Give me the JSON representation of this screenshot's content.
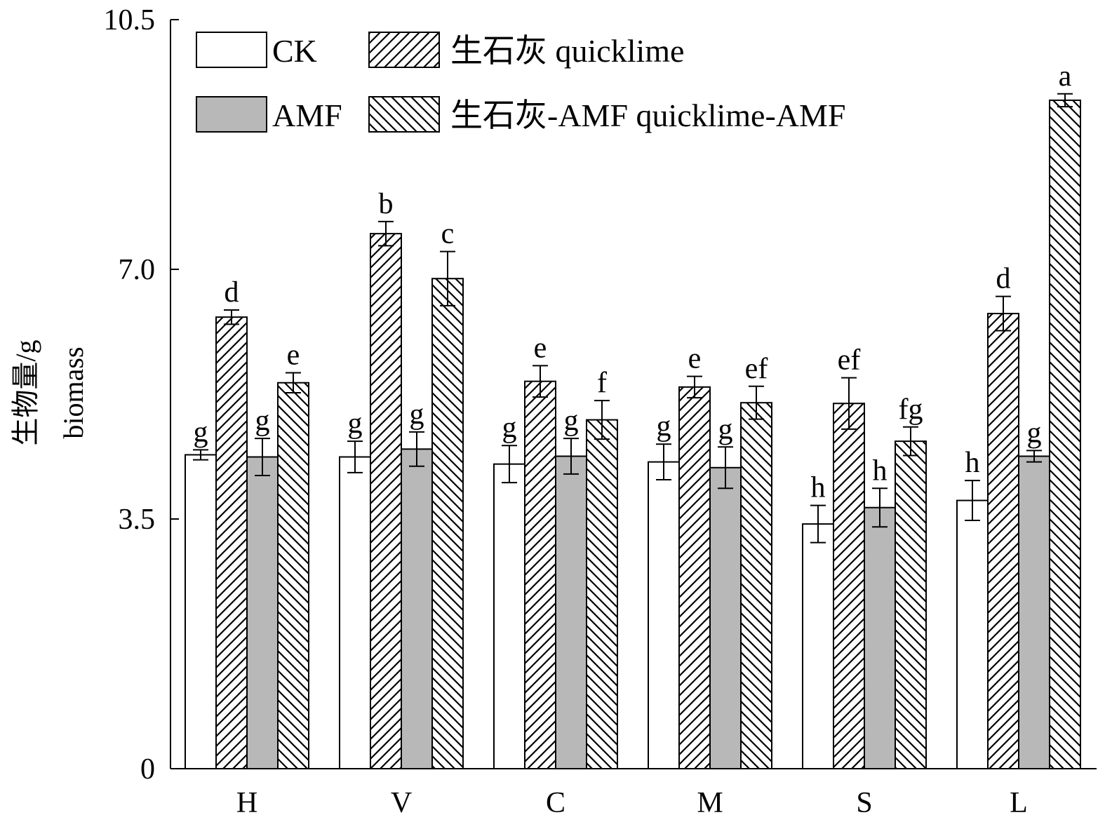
{
  "chart_data": {
    "type": "bar",
    "title": "",
    "xlabel": "",
    "ylabel_cn": "生物量/g",
    "ylabel_en": "biomass",
    "ylim": [
      0,
      10.5
    ],
    "yticks": [
      "0",
      "3.5",
      "7.0",
      "10.5"
    ],
    "categories": [
      "H",
      "V",
      "C",
      "M",
      "S",
      "L"
    ],
    "legend_position": "top-left",
    "series": [
      {
        "name": "CK",
        "pattern": "blank",
        "color": "#ffffff",
        "values": [
          4.4,
          4.37,
          4.27,
          4.3,
          3.43,
          3.76
        ],
        "errors": [
          0.07,
          0.22,
          0.26,
          0.25,
          0.26,
          0.28
        ],
        "letters": [
          "g",
          "g",
          "g",
          "g",
          "h",
          "h"
        ]
      },
      {
        "name": "生石灰 quicklime",
        "pattern": "diag-up",
        "color": "#ffffff",
        "values": [
          6.33,
          7.5,
          5.43,
          5.35,
          5.12,
          6.38
        ],
        "errors": [
          0.1,
          0.17,
          0.22,
          0.15,
          0.36,
          0.24
        ],
        "letters": [
          "d",
          "b",
          "e",
          "e",
          "ef",
          "d"
        ]
      },
      {
        "name": "AMF",
        "pattern": "gray",
        "color": "#b8b8b8",
        "values": [
          4.37,
          4.48,
          4.38,
          4.22,
          3.66,
          4.38
        ],
        "errors": [
          0.26,
          0.24,
          0.25,
          0.29,
          0.27,
          0.08
        ],
        "letters": [
          "g",
          "g",
          "g",
          "g",
          "h",
          "g"
        ]
      },
      {
        "name": "生石灰-AMF quicklime-AMF",
        "pattern": "diag-down",
        "color": "#ffffff",
        "values": [
          5.41,
          6.87,
          4.89,
          5.13,
          4.59,
          9.37
        ],
        "errors": [
          0.14,
          0.38,
          0.27,
          0.23,
          0.2,
          0.09
        ],
        "letters": [
          "e",
          "c",
          "f",
          "ef",
          "fg",
          "a"
        ]
      }
    ]
  }
}
